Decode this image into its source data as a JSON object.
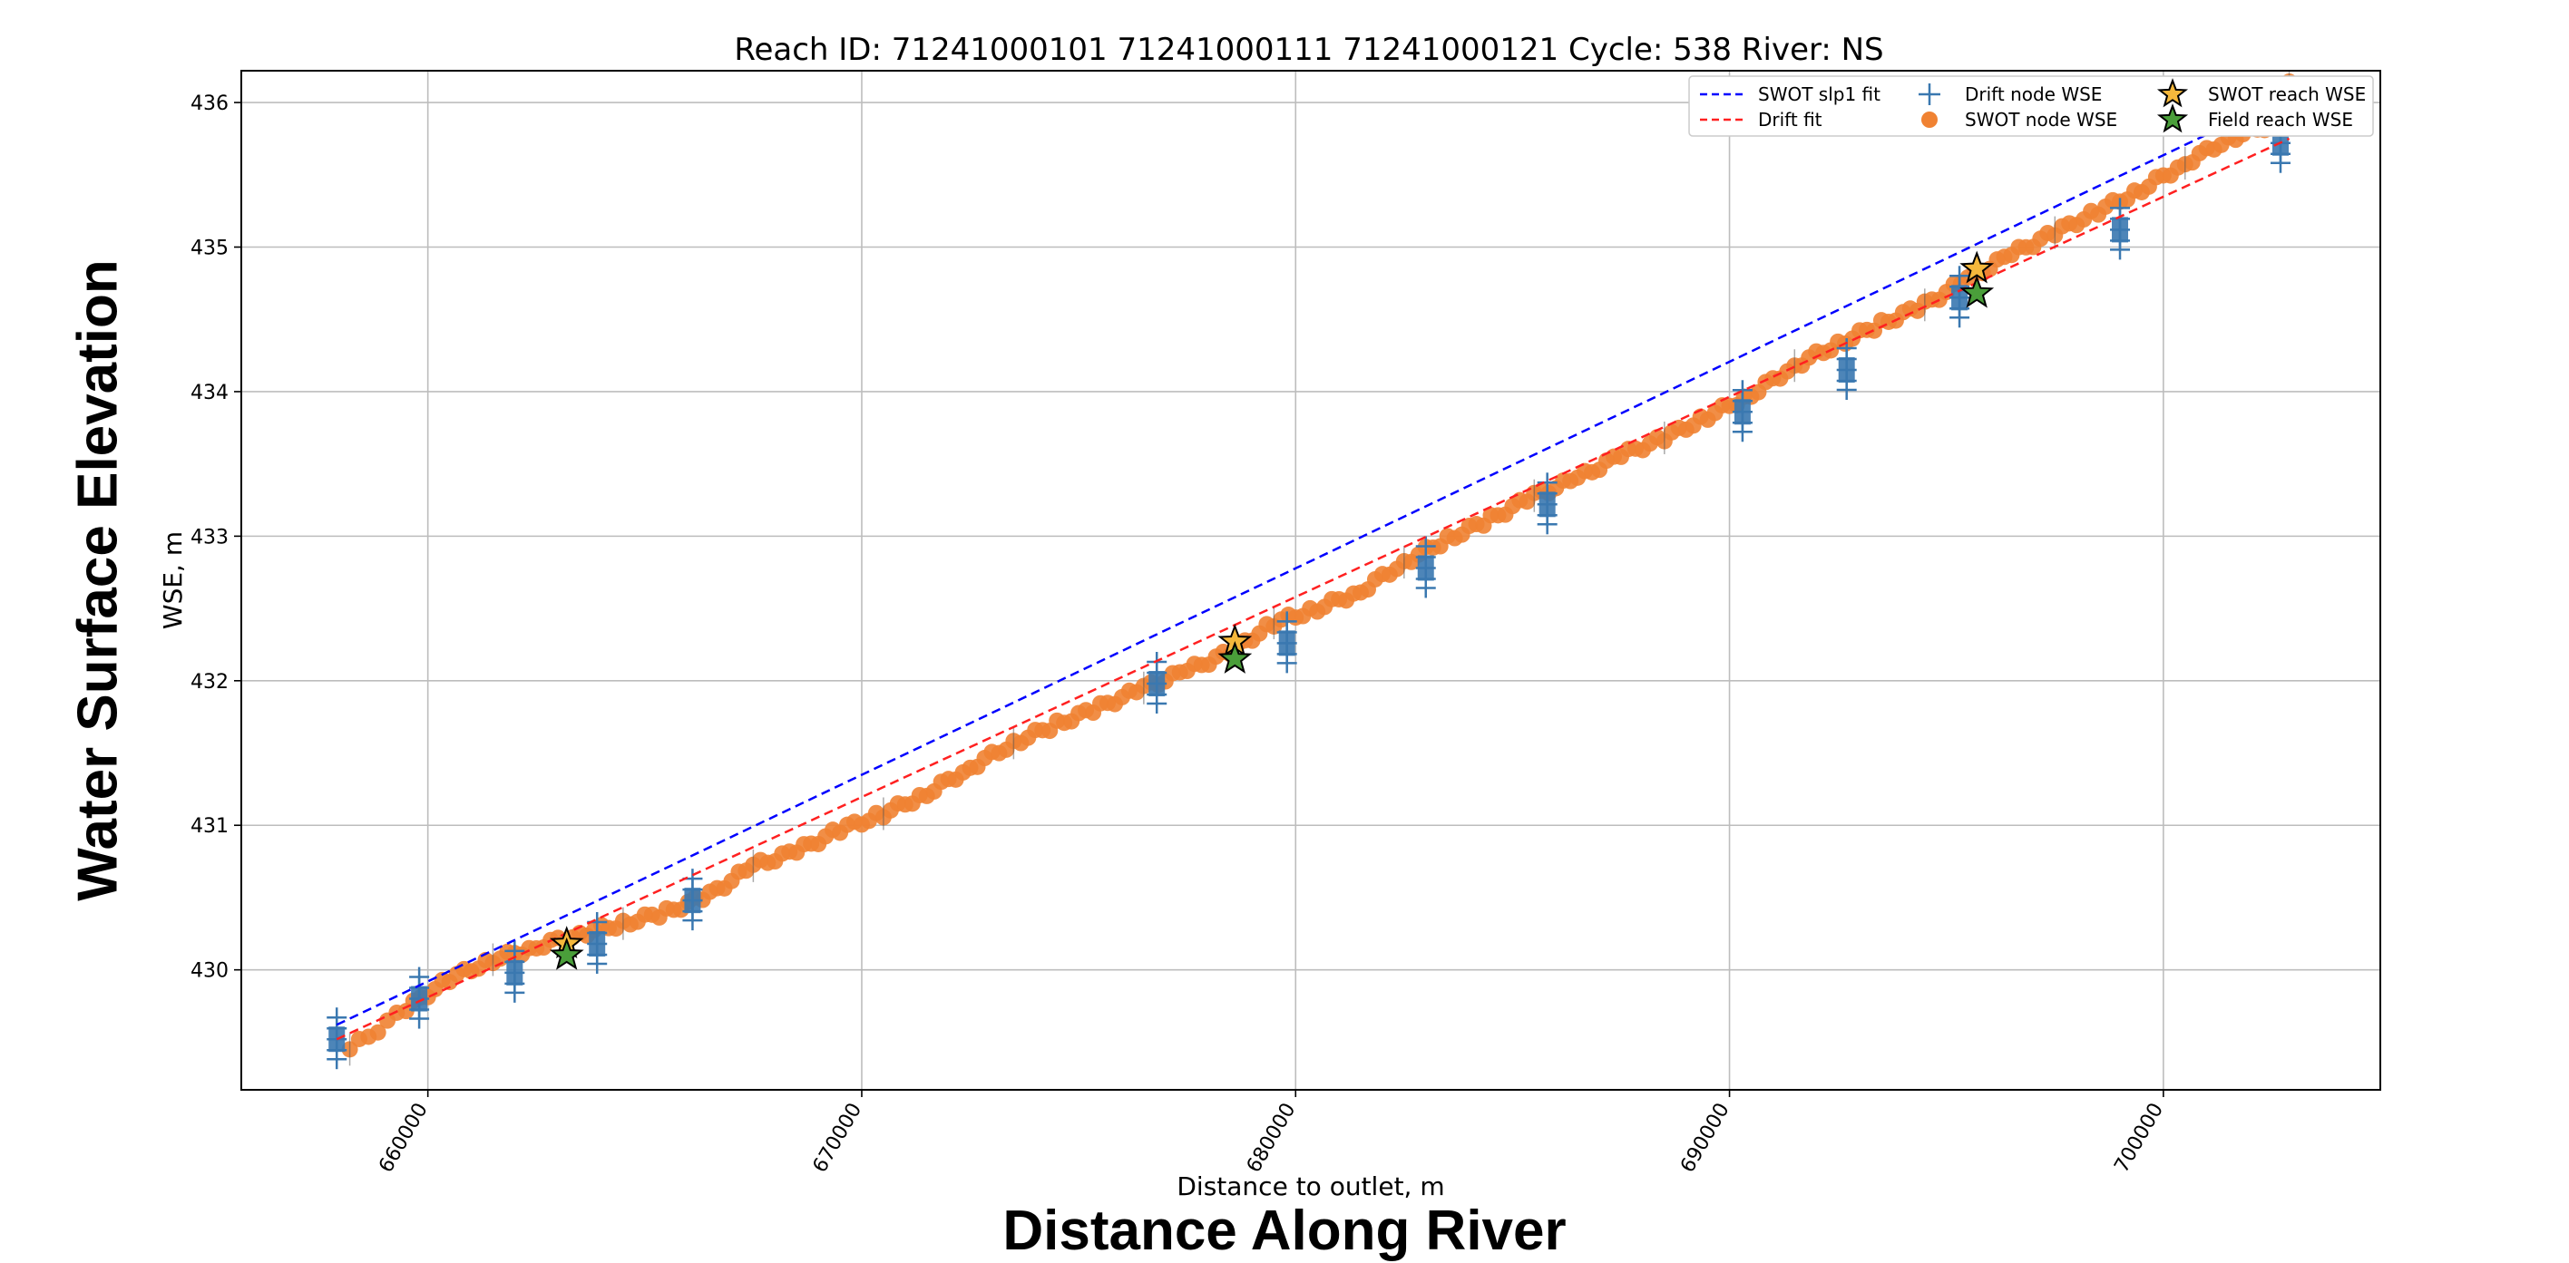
{
  "figure": {
    "outer_xlabel": "Distance Along River",
    "outer_ylabel": "Water Surface Elevation"
  },
  "colors": {
    "swot_fit": "#0000ff",
    "drift_fit": "#ff2020",
    "drift_node": "#3a78b0",
    "swot_node": "#f08232",
    "swot_star": "#f5b83c",
    "field_star": "#4a9e3a",
    "error_bar": "#555555",
    "grid": "#bdbdbd"
  },
  "chart_data": {
    "type": "scatter",
    "title": "Reach ID: 71241000101 71241000111 71241000121 Cycle: 538 River: NS",
    "xlabel": "Distance to outlet, m",
    "ylabel": "WSE, m",
    "xlim": [
      655700,
      705000
    ],
    "ylim": [
      436.22,
      429.17
    ],
    "y_inverted": true,
    "grid": true,
    "legend_position": "top-right",
    "xticks": [
      660000,
      670000,
      680000,
      690000,
      700000
    ],
    "yticks": [
      430,
      431,
      432,
      433,
      434,
      435,
      436
    ],
    "legend": [
      {
        "label": "SWOT slp1 fit",
        "marker": "dashed-line",
        "color": "#0000ff"
      },
      {
        "label": "Drift fit",
        "marker": "dashed-line",
        "color": "#ff2020"
      },
      {
        "label": "Drift node WSE",
        "marker": "plus",
        "color": "#3a78b0"
      },
      {
        "label": "SWOT node WSE",
        "marker": "circle",
        "color": "#f08232"
      },
      {
        "label": "SWOT reach WSE",
        "marker": "star",
        "color": "#f5b83c"
      },
      {
        "label": "Field reach WSE",
        "marker": "star",
        "color": "#4a9e3a"
      }
    ],
    "series": [
      {
        "name": "SWOT slp1 fit",
        "kind": "line",
        "x": [
          657900,
          702900
        ],
        "y": [
          429.62,
          436.05
        ]
      },
      {
        "name": "Drift fit",
        "kind": "line",
        "x": [
          657900,
          702900
        ],
        "y": [
          429.52,
          435.75
        ]
      },
      {
        "name": "SWOT node WSE",
        "kind": "points",
        "x": [
          658200,
          659500,
          660500,
          661500,
          662500,
          663500,
          664500,
          665500,
          666500,
          667500,
          668500,
          669500,
          670500,
          671500,
          672500,
          673500,
          674500,
          675500,
          676500,
          677500,
          678500,
          679500,
          680500,
          681500,
          682500,
          683500,
          684500,
          685500,
          686500,
          687500,
          688500,
          689500,
          690500,
          691500,
          692500,
          693500,
          694500,
          695500,
          696500,
          697500,
          698500,
          699500,
          700500,
          701500,
          702500,
          702900
        ],
        "y": [
          429.45,
          429.73,
          429.94,
          430.07,
          430.16,
          430.25,
          430.32,
          430.4,
          430.52,
          430.72,
          430.82,
          430.97,
          431.08,
          431.22,
          431.4,
          431.57,
          431.7,
          431.82,
          431.95,
          432.07,
          432.2,
          432.4,
          432.5,
          432.62,
          432.82,
          432.98,
          433.12,
          433.28,
          433.4,
          433.56,
          433.68,
          433.83,
          433.98,
          434.18,
          434.33,
          434.47,
          434.6,
          434.78,
          434.95,
          435.1,
          435.25,
          435.4,
          435.58,
          435.75,
          435.85,
          436.12
        ]
      },
      {
        "name": "Drift node WSE",
        "kind": "points",
        "x": [
          657900,
          659800,
          662000,
          663900,
          666100,
          676800,
          679800,
          683000,
          685800,
          690300,
          692700,
          695300,
          699000,
          702700
        ],
        "y": [
          429.52,
          429.8,
          429.98,
          430.18,
          430.48,
          431.98,
          432.26,
          432.78,
          433.22,
          433.86,
          434.15,
          434.65,
          435.12,
          435.72
        ]
      },
      {
        "name": "SWOT reach WSE",
        "kind": "stars",
        "x": [
          663200,
          678600,
          695700
        ],
        "y": [
          430.18,
          432.27,
          434.85
        ]
      },
      {
        "name": "Field reach WSE",
        "kind": "stars",
        "x": [
          663200,
          678600,
          695700
        ],
        "y": [
          430.1,
          432.15,
          434.68
        ]
      }
    ]
  }
}
